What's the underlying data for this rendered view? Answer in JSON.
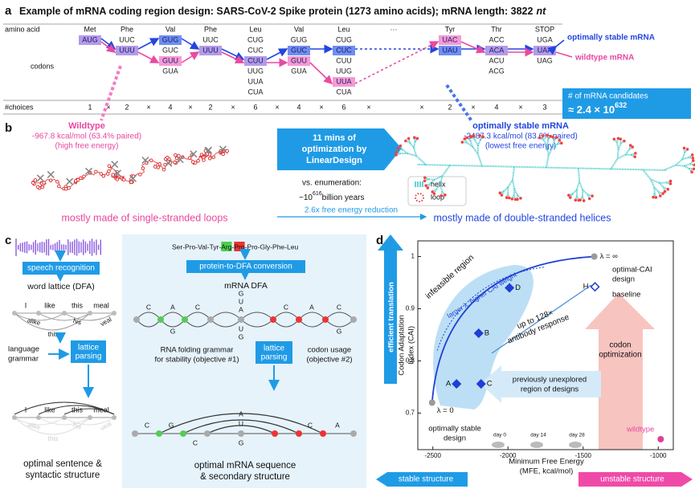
{
  "panel_a": {
    "label": "a",
    "title": [
      "Example of mRNA coding region design: SARS-CoV-2 Spike protein (1273 amino acids); mRNA length: 3822",
      "nt"
    ],
    "row_labels": [
      "amino acid",
      "codons",
      "#choices"
    ],
    "times": "×",
    "columns": [
      {
        "amino_acid": "Met",
        "codons": [
          "AUG"
        ],
        "optimal": 0,
        "wildtype": 0,
        "choices": 1
      },
      {
        "amino_acid": "Phe",
        "codons": [
          "UUC",
          "UUU"
        ],
        "optimal": 1,
        "wildtype": 1,
        "choices": 2
      },
      {
        "amino_acid": "Val",
        "codons": [
          "GUG",
          "GUC",
          "GUU",
          "GUA"
        ],
        "optimal": 0,
        "wildtype": 2,
        "choices": 4
      },
      {
        "amino_acid": "Phe",
        "codons": [
          "UUC",
          "UUU"
        ],
        "optimal": 1,
        "wildtype": 1,
        "choices": 2
      },
      {
        "amino_acid": "Leu",
        "codons": [
          "CUG",
          "CUC",
          "CUU",
          "UUG",
          "UUA",
          "CUA"
        ],
        "optimal": 2,
        "wildtype": 2,
        "choices": 6
      },
      {
        "amino_acid": "Val",
        "codons": [
          "GUG",
          "GUC",
          "GUU",
          "GUA"
        ],
        "optimal": 1,
        "wildtype": 2,
        "choices": 4
      },
      {
        "amino_acid": "Leu",
        "codons": [
          "CUG",
          "CUC",
          "CUU",
          "UUG",
          "UUA",
          "CUA"
        ],
        "optimal": 1,
        "wildtype": 4,
        "choices": 6
      },
      {
        "amino_acid": "···",
        "codons": [],
        "optimal": null,
        "wildtype": null,
        "choices": null
      },
      {
        "amino_acid": "Tyr",
        "codons": [
          "UAC",
          "UAU"
        ],
        "optimal": 1,
        "wildtype": 0,
        "choices": 2
      },
      {
        "amino_acid": "Thr",
        "codons": [
          "ACC",
          "ACA",
          "ACU",
          "ACG"
        ],
        "optimal": 1,
        "wildtype": 1,
        "choices": 4
      },
      {
        "amino_acid": "STOP",
        "codons": [
          "UGA",
          "UAA",
          "UAG"
        ],
        "optimal": 1,
        "wildtype": 1,
        "choices": 3
      }
    ],
    "optimal_label": "optimally stable mRNA",
    "wildtype_label": "wildtype mRNA",
    "candidates": {
      "label": "# of mRNA candidates",
      "value": "≈ 2.4 × 10",
      "exponent": "632"
    }
  },
  "panel_b": {
    "label": "b",
    "wildtype": {
      "title": "Wildtype",
      "energy": "-967.8 kcal/mol (63.4% paired)",
      "note": "(high free energy)",
      "caption": "mostly made of single-stranded loops"
    },
    "optimal": {
      "title": "optimally stable mRNA",
      "energy": "-2487.3 kcal/mol (83.6% paired)",
      "note": "(lowest free energy)",
      "caption": "mostly made of double-stranded helices"
    },
    "arrow_text": [
      "11 mins of",
      "optimization by",
      "LinearDesign"
    ],
    "enumeration": "vs. enumeration:",
    "enumeration_time": [
      "~10",
      "616",
      "billion years"
    ],
    "reduction": "2.6x free energy reduction",
    "legend": [
      "helix",
      "loop"
    ]
  },
  "panel_c": {
    "label": "c",
    "speech": {
      "recognition": "speech recognition",
      "lattice": "word lattice (DFA)",
      "words": [
        "I",
        "like",
        "this",
        "meal",
        "alike",
        "his",
        "veal",
        "this"
      ],
      "grammar": [
        "language",
        "grammar"
      ],
      "parsing": [
        "lattice",
        "parsing"
      ],
      "result": [
        "optimal sentence &",
        "syntactic structure"
      ]
    },
    "mrna": {
      "protein": [
        "Ser-Pro-Val-Tyr-",
        "Arg",
        "-",
        "Pro",
        "-Pro-Gly-Phe-Leu"
      ],
      "conversion": "protein-to-DFA conversion",
      "dfa": "mRNA DFA",
      "letters": [
        "C",
        "A",
        "G",
        "C",
        "G",
        "U",
        "A",
        "U",
        "G",
        "C",
        "A",
        "C",
        "G"
      ],
      "folding": [
        "RNA folding grammar",
        "for stability (objective #1)"
      ],
      "parsing": [
        "lattice",
        "parsing"
      ],
      "codon": [
        "codon usage",
        "(objective #2)"
      ],
      "structure_letters": [
        "C",
        "G",
        "A",
        "U",
        "G",
        "C",
        "A",
        "C"
      ],
      "result": [
        "optimal mRNA sequence",
        "& secondary structure"
      ]
    }
  },
  "chart_data": {
    "type": "scatter",
    "label": "d",
    "x": [
      -2505,
      -2342,
      -2195,
      -2179,
      -1990,
      -1426,
      -1421,
      -984
    ],
    "values": [
      0.72,
      0.756,
      0.853,
      0.756,
      0.94,
      1.0,
      0.942,
      0.65
    ],
    "point_labels": [
      "λ = 0",
      "A",
      "B",
      "C",
      "D",
      "λ = ∞",
      "H",
      "wildtype"
    ],
    "markers": [
      "circle",
      "diamond",
      "diamond",
      "diamond",
      "diamond",
      "circle",
      "open-diamond",
      "circle"
    ],
    "colors": [
      "#9a9a9a",
      "#1f3fd6",
      "#1f3fd6",
      "#1f3fd6",
      "#1f3fd6",
      "#9a9a9a",
      "#1f3fd6",
      "#e0409a"
    ],
    "xlim": [
      -2600,
      -900
    ],
    "ylim": [
      0.63,
      1.03
    ],
    "xticks": [
      -2500,
      -2000,
      -1500,
      -1000
    ],
    "yticks": [
      0.7,
      0.8,
      0.9,
      1
    ],
    "xlabel": [
      "Minimum Free Energy",
      "(MFE, kcal/mol)"
    ],
    "ylabel": [
      "Codon Adaptation",
      "Index (CAI)"
    ],
    "annotations": {
      "infeasible": "infeasible region",
      "lambda": "larger λ, higher CAI weight",
      "optimal_cai": [
        "optimal-CAI",
        "design"
      ],
      "baseline": "baseline",
      "antibody": [
        "up to 128×",
        "antibody response"
      ],
      "codon_opt": [
        "codon",
        "optimization"
      ],
      "unexplored": [
        "previously unexplored",
        "region of designs"
      ],
      "stable_design": [
        "optimally stable",
        "design"
      ],
      "efficient": "efficient translation",
      "stable": "stable structure",
      "unstable": "unstable structure",
      "days": [
        "day 0",
        "day 14",
        "day 28"
      ]
    }
  }
}
